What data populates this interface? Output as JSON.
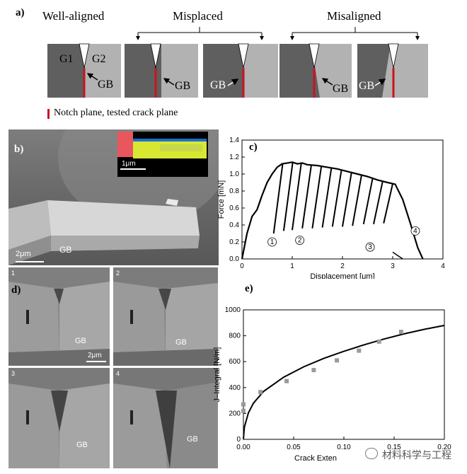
{
  "panel_a": {
    "letter": "a)",
    "cat_well_aligned": "Well-aligned",
    "cat_misplaced": "Misplaced",
    "cat_misaligned": "Misaligned",
    "grain1": "G1",
    "grain2": "G2",
    "gb_label": "GB",
    "legend_text": "Notch plane, tested crack plane",
    "colors": {
      "dark_grain": "#5f5f5f",
      "light_grain": "#b2b2b2",
      "notch_red": "#c8141e"
    }
  },
  "panel_b": {
    "letter": "b)",
    "scale_main": "2μm",
    "scale_inset": "1μm",
    "gb_label": "GB"
  },
  "panel_c": {
    "letter": "c)",
    "cycle_labels": [
      "1",
      "2",
      "3",
      "4"
    ]
  },
  "panel_d": {
    "letter": "d)",
    "sub_labels": [
      "1",
      "2",
      "3",
      "4"
    ],
    "gb_label": "GB",
    "scale": "2μm"
  },
  "panel_e": {
    "letter": "e)"
  },
  "watermark": {
    "text": "材料科学与工程"
  },
  "chart_data": [
    {
      "type": "line",
      "title": "",
      "xlabel": "Displacement [μm]",
      "ylabel": "Force [mN]",
      "xlim": [
        0,
        4
      ],
      "ylim": [
        0,
        1.4
      ],
      "xticks": [
        "0",
        "1",
        "2",
        "3",
        "4"
      ],
      "yticks": [
        "0.0",
        "0.2",
        "0.4",
        "0.6",
        "0.8",
        "1.0",
        "1.2",
        "1.4"
      ],
      "series": [
        {
          "loading_envelope": [
            [
              0.0,
              0.0
            ],
            [
              0.1,
              0.3
            ],
            [
              0.2,
              0.5
            ],
            [
              0.3,
              0.58
            ],
            [
              0.4,
              0.75
            ],
            [
              0.5,
              0.9
            ],
            [
              0.6,
              1.0
            ],
            [
              0.7,
              1.08
            ],
            [
              0.8,
              1.12
            ],
            [
              0.9,
              1.13
            ],
            [
              1.0,
              1.14
            ],
            [
              1.1,
              1.12
            ],
            [
              1.2,
              1.13
            ],
            [
              1.3,
              1.11
            ],
            [
              1.5,
              1.1
            ],
            [
              1.7,
              1.08
            ],
            [
              1.9,
              1.06
            ],
            [
              2.1,
              1.03
            ],
            [
              2.3,
              1.0
            ],
            [
              2.5,
              0.97
            ],
            [
              2.7,
              0.93
            ],
            [
              2.9,
              0.9
            ],
            [
              3.05,
              0.88
            ],
            [
              3.2,
              0.7
            ],
            [
              3.35,
              0.42
            ],
            [
              3.5,
              0.13
            ],
            [
              3.6,
              0.0
            ]
          ],
          "unloading_cycles": [
            [
              0.63,
              0.3
            ],
            [
              0.83,
              0.33
            ],
            [
              1.0,
              0.34
            ],
            [
              1.2,
              0.36
            ],
            [
              1.4,
              0.36
            ],
            [
              1.6,
              0.37
            ],
            [
              1.8,
              0.38
            ],
            [
              2.0,
              0.38
            ],
            [
              2.2,
              0.39
            ],
            [
              2.42,
              0.41
            ],
            [
              2.62,
              0.41
            ],
            [
              2.82,
              0.42
            ]
          ]
        }
      ]
    },
    {
      "type": "scatter",
      "title": "",
      "xlabel": "Crack Exten",
      "ylabel": "J–Integral [N/m]",
      "xlim": [
        0,
        0.2
      ],
      "ylim": [
        0,
        1000
      ],
      "xticks": [
        "0.00",
        "0.05",
        "0.10",
        "0.15",
        "0.20"
      ],
      "yticks": [
        "0",
        "200",
        "400",
        "600",
        "800",
        "1000"
      ],
      "series": [
        {
          "points": [
            [
              0.0,
              270
            ],
            [
              0.0,
              220
            ],
            [
              0.017,
              365
            ],
            [
              0.043,
              450
            ],
            [
              0.07,
              535
            ],
            [
              0.093,
              610
            ],
            [
              0.115,
              685
            ],
            [
              0.135,
              755
            ],
            [
              0.157,
              830
            ]
          ]
        },
        {
          "fit_curve": [
            [
              0.0,
              0
            ],
            [
              0.001,
              95
            ],
            [
              0.005,
              205
            ],
            [
              0.01,
              280
            ],
            [
              0.02,
              370
            ],
            [
              0.04,
              480
            ],
            [
              0.06,
              560
            ],
            [
              0.08,
              625
            ],
            [
              0.1,
              680
            ],
            [
              0.12,
              730
            ],
            [
              0.14,
              775
            ],
            [
              0.16,
              815
            ],
            [
              0.18,
              850
            ],
            [
              0.2,
              880
            ]
          ]
        }
      ]
    }
  ]
}
